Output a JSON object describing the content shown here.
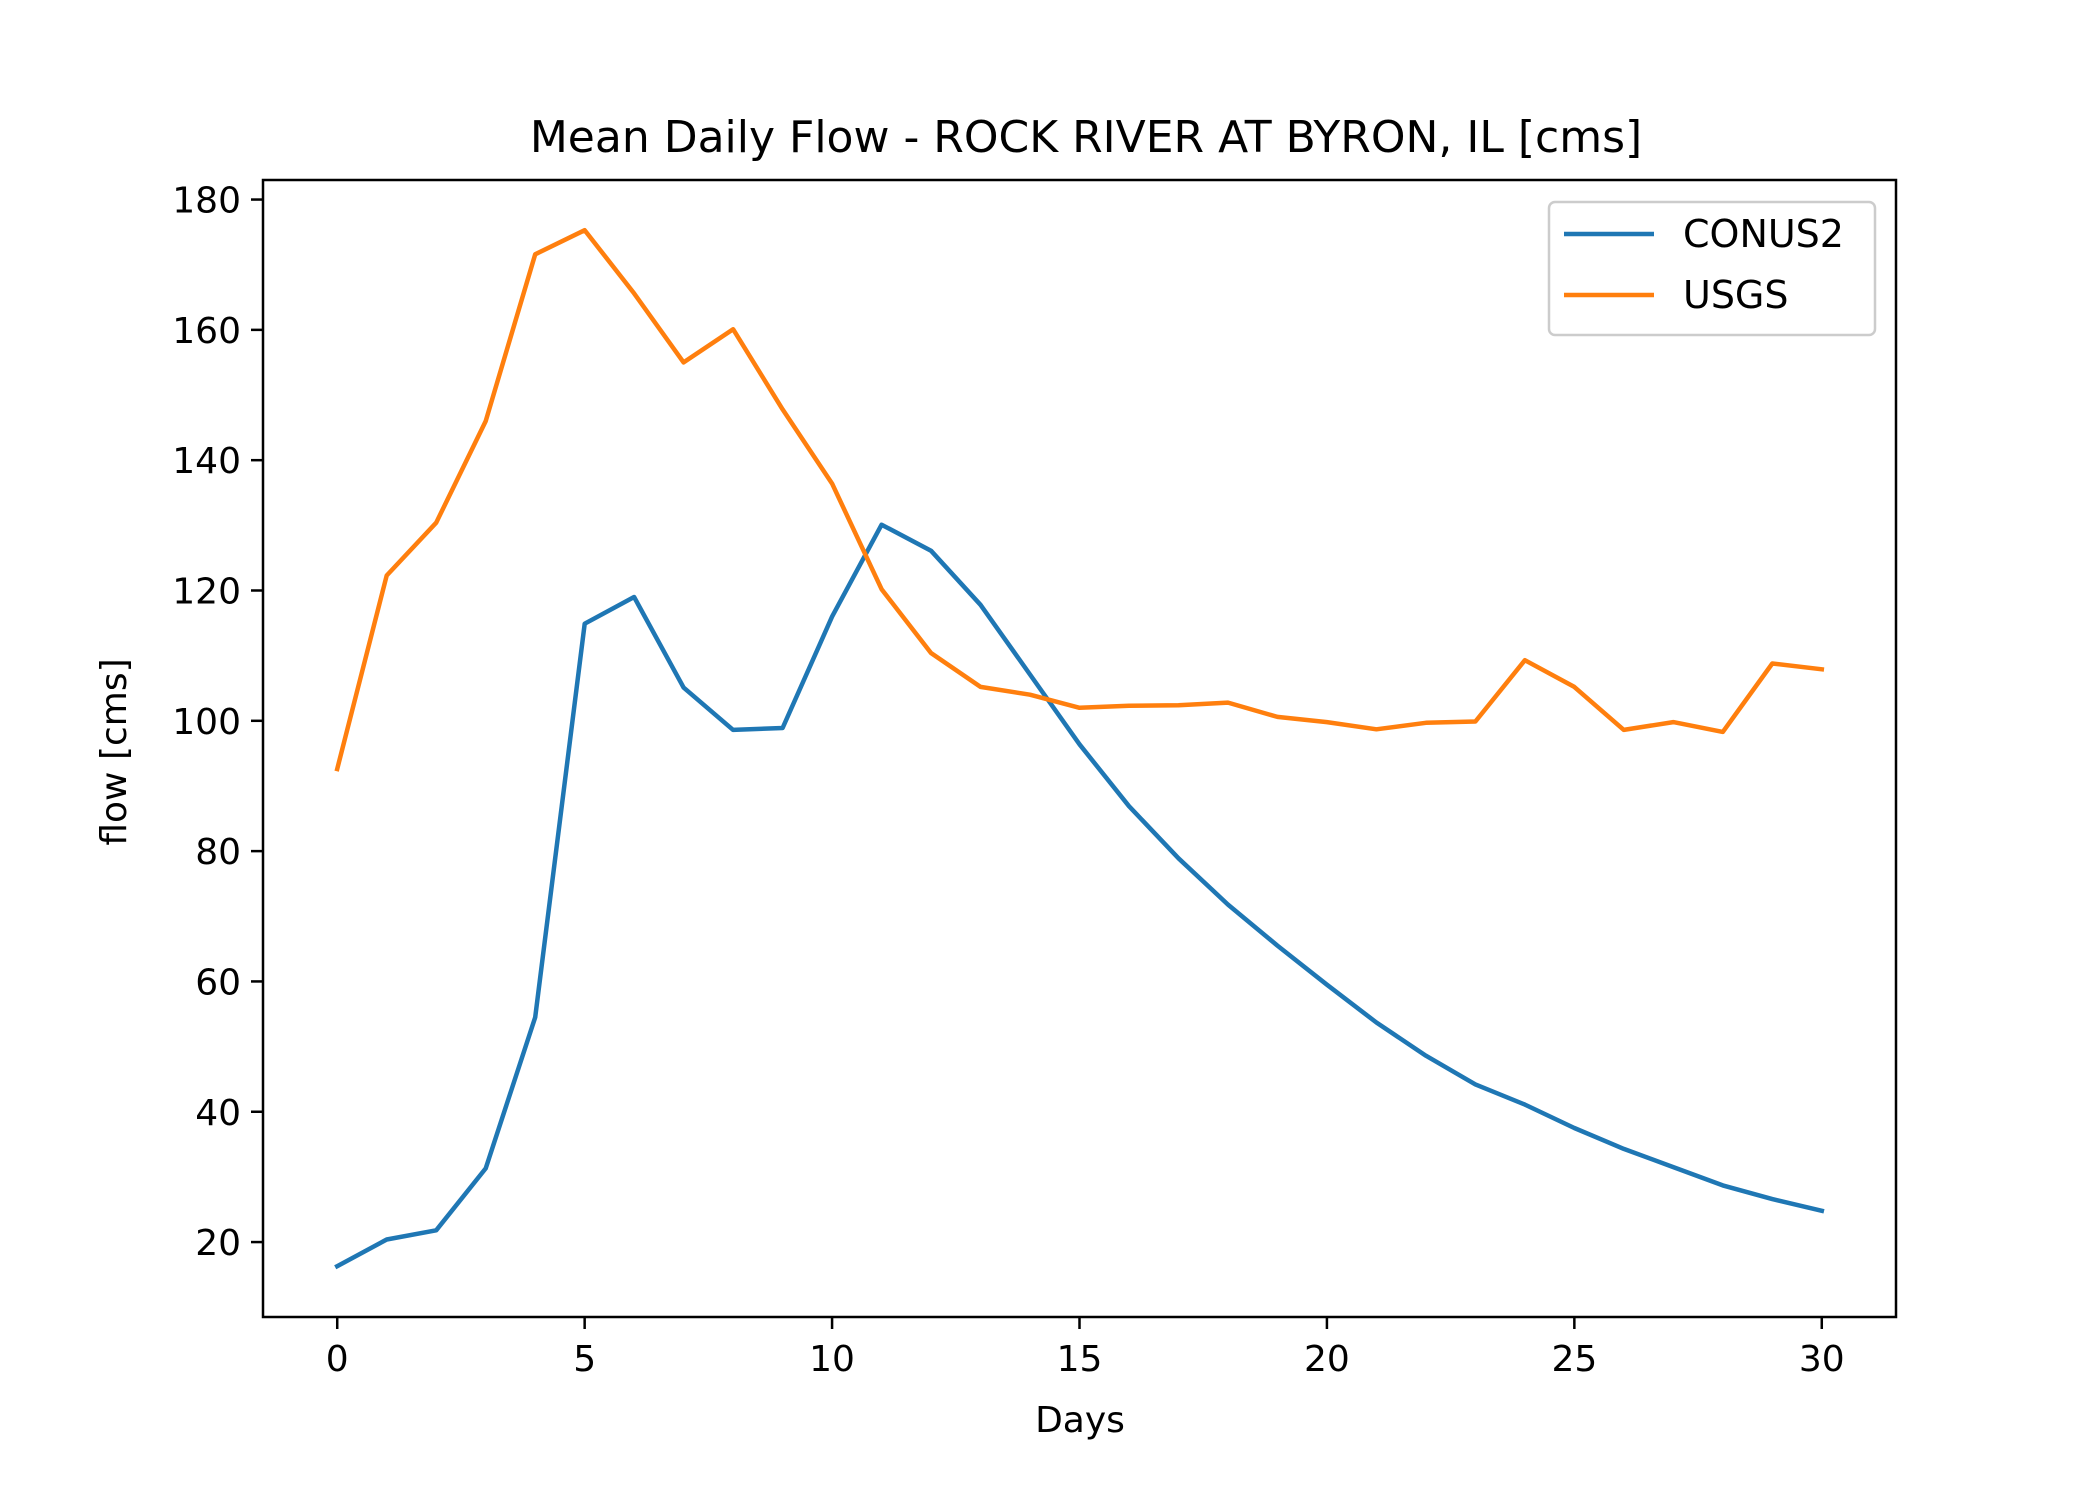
{
  "chart_data": {
    "type": "line",
    "title": "Mean Daily Flow - ROCK RIVER AT BYRON, IL [cms]",
    "xlabel": "Days",
    "ylabel": "flow [cms]",
    "xlim": [
      -1.5,
      31.5
    ],
    "ylim": [
      8.5,
      183
    ],
    "xticks": [
      0,
      5,
      10,
      15,
      20,
      25,
      30
    ],
    "yticks": [
      20,
      40,
      60,
      80,
      100,
      120,
      140,
      160,
      180
    ],
    "legend_position": "top-right",
    "grid": false,
    "x": [
      0,
      1,
      2,
      3,
      4,
      5,
      6,
      7,
      8,
      9,
      10,
      11,
      12,
      13,
      14,
      15,
      16,
      17,
      18,
      19,
      20,
      21,
      22,
      23,
      24,
      25,
      26,
      27,
      28,
      29,
      30
    ],
    "series": [
      {
        "name": "CONUS2",
        "color": "#1f77b4",
        "values": [
          16.3,
          20.4,
          21.8,
          31.3,
          54.5,
          114.9,
          119.0,
          105.1,
          98.6,
          98.9,
          116.0,
          130.1,
          126.1,
          117.8,
          107.1,
          96.4,
          86.9,
          78.9,
          71.8,
          65.5,
          59.5,
          53.7,
          48.6,
          44.2,
          41.1,
          37.5,
          34.3,
          31.5,
          28.7,
          26.6,
          24.8
        ]
      },
      {
        "name": "USGS",
        "color": "#ff7f0e",
        "values": [
          92.6,
          122.3,
          130.4,
          146.0,
          171.6,
          175.3,
          165.6,
          155.0,
          160.1,
          147.8,
          136.4,
          120.2,
          110.4,
          105.2,
          104.0,
          102.0,
          102.3,
          102.4,
          102.8,
          100.6,
          99.8,
          98.7,
          99.7,
          99.9,
          109.3,
          105.2,
          98.6,
          99.8,
          98.3,
          108.8,
          107.9
        ]
      }
    ]
  }
}
